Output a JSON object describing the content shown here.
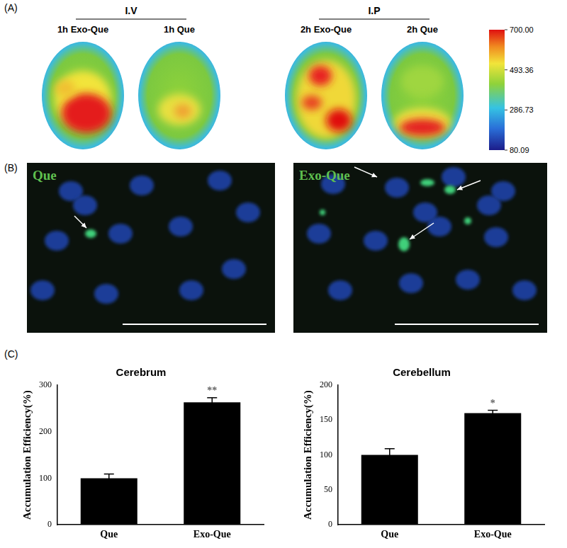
{
  "panel_a": {
    "label": "(A)",
    "groups": [
      {
        "title": "I.V",
        "images": [
          "1h Exo-Que",
          "1h Que"
        ]
      },
      {
        "title": "I.P",
        "images": [
          "2h Exo-Que",
          "2h Que"
        ]
      }
    ],
    "color_bar": {
      "range": [
        80.09,
        700
      ],
      "ticks": [
        {
          "value": 700,
          "label": "700.00"
        },
        493.36,
        286.73,
        80.09
      ]
    }
  },
  "panel_b": {
    "label": "(B)",
    "images": [
      "Que",
      "Exo-Que"
    ]
  },
  "panel_c": {
    "label": "(C)"
  },
  "chart_data": [
    {
      "type": "bar",
      "title": "Cerebrum",
      "y_label": "Accumulation Efficiency(%)",
      "categories": [
        "Que",
        "Exo-Que"
      ],
      "values": [
        100,
        263
      ],
      "errors": [
        9,
        10
      ],
      "significance": [
        null,
        "**"
      ],
      "color": "#000000",
      "ylim": [
        0,
        300
      ],
      "yticks": [
        0,
        100,
        200,
        300
      ],
      "grid": false
    },
    {
      "type": "bar",
      "title": "Cerebellum",
      "y_label": "Accumulation Efficiency(%)",
      "categories": [
        "Que",
        "Exo-Que"
      ],
      "values": [
        100,
        160
      ],
      "errors": [
        9,
        4
      ],
      "significance": [
        null,
        "*"
      ],
      "color": "#000000",
      "ylim": [
        0,
        200
      ],
      "yticks": [
        0,
        50,
        100,
        150,
        200
      ],
      "grid": false
    }
  ]
}
